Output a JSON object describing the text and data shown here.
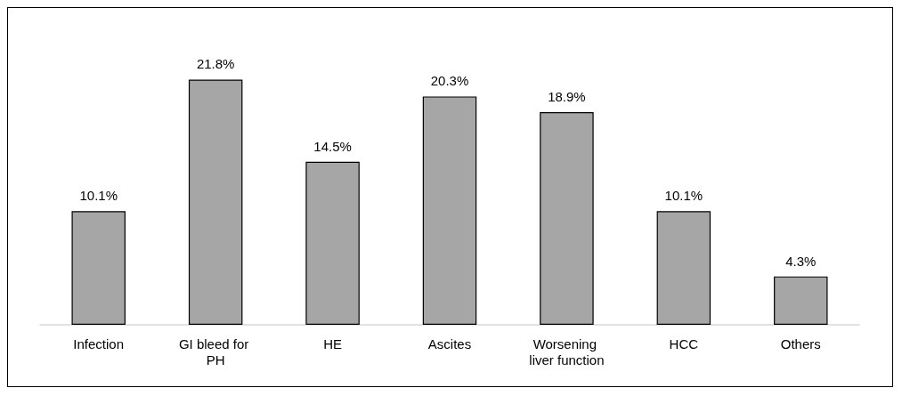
{
  "chart_data": {
    "type": "bar",
    "categories": [
      "Infection",
      "GI bleed for PH",
      "HE",
      "Ascites",
      "Worsening liver function",
      "HCC",
      "Others"
    ],
    "values": [
      10.1,
      21.8,
      14.5,
      20.3,
      18.9,
      10.1,
      4.3
    ],
    "value_labels": [
      "10.1%",
      "21.8%",
      "14.5%",
      "20.3%",
      "18.9%",
      "10.1%",
      "4.3%"
    ],
    "color": "#a6a6a6"
  }
}
